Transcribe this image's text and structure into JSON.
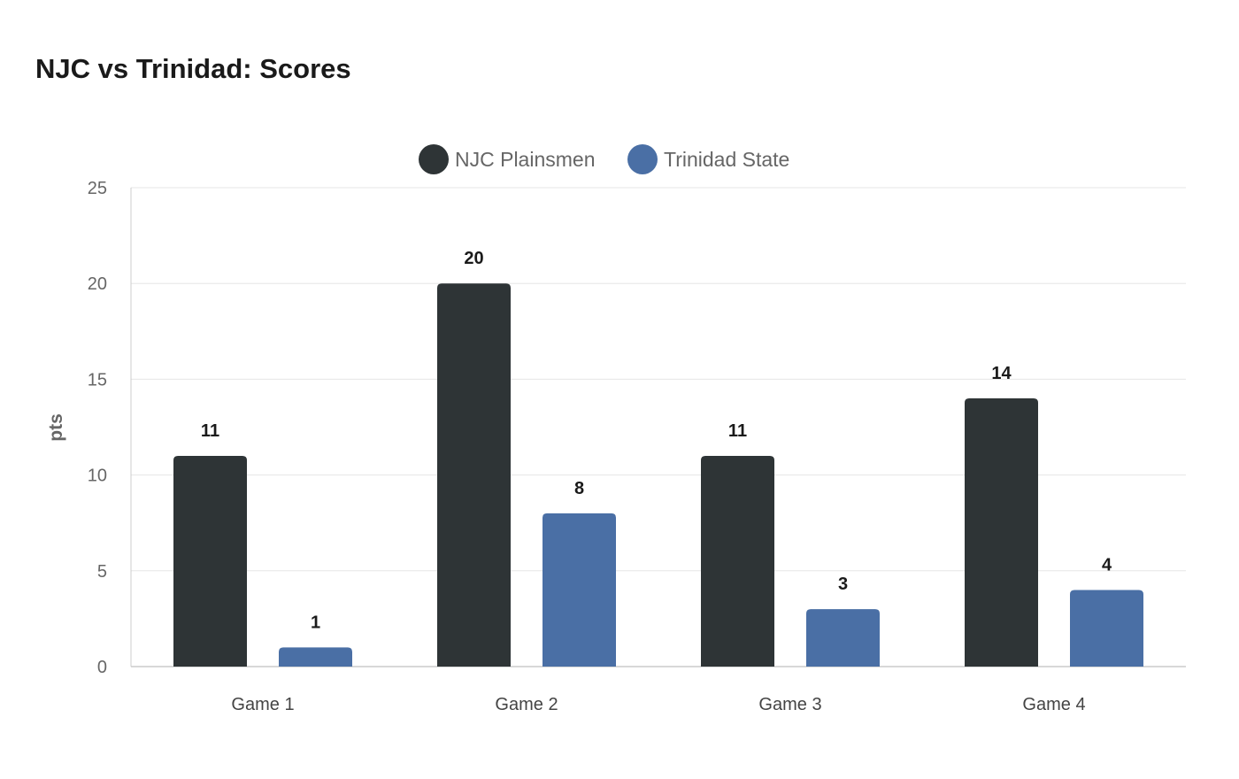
{
  "chart_data": {
    "type": "bar",
    "title": "NJC vs Trinidad: Scores",
    "ylabel": "pts",
    "xlabel": "",
    "categories": [
      "Game 1",
      "Game 2",
      "Game 3",
      "Game 4"
    ],
    "series": [
      {
        "name": "NJC Plainsmen",
        "values": [
          11,
          20,
          11,
          14
        ],
        "color": "#2e3436"
      },
      {
        "name": "Trinidad State",
        "values": [
          1,
          8,
          3,
          4
        ],
        "color": "#4a6fa5"
      }
    ],
    "ylim": [
      0,
      25
    ],
    "yticks": [
      0,
      5,
      10,
      15,
      20,
      25
    ],
    "grid": true,
    "legend": "top-center"
  }
}
